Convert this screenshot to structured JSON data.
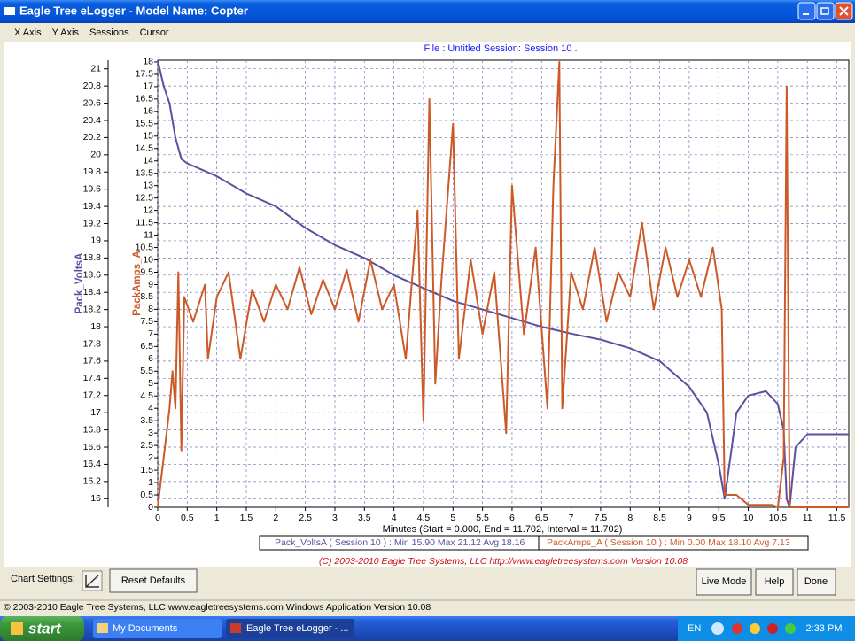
{
  "window": {
    "title": "Eagle Tree eLogger - Model Name: Copter"
  },
  "menu": [
    "X Axis",
    "Y Axis",
    "Sessions",
    "Cursor"
  ],
  "chart_data": {
    "type": "line",
    "title": "File : Untitled   Session: Session 10 .",
    "xlabel": "Minutes (Start = 0.000,  End = 11.702, Interval = 11.702)",
    "xlim": [
      0,
      11.702
    ],
    "xticks": [
      0,
      0.5,
      1,
      1.5,
      2,
      2.5,
      3,
      3.5,
      4,
      4.5,
      5,
      5.5,
      6,
      6.5,
      7,
      7.5,
      8,
      8.5,
      9,
      9.5,
      10,
      10.5,
      11,
      11.5
    ],
    "ylim": [
      15.9,
      21.1
    ],
    "yticks": [
      16,
      16.2,
      16.4,
      16.6,
      16.8,
      17,
      17.2,
      17.4,
      17.6,
      17.8,
      18,
      18.2,
      18.4,
      18.6,
      18.8,
      19,
      19.2,
      19.4,
      19.6,
      19.8,
      20,
      20.2,
      20.4,
      20.6,
      20.8,
      21
    ],
    "y2lim": [
      0,
      18.07
    ],
    "y2ticks": [
      0,
      0.5,
      1,
      1.5,
      2,
      2.5,
      3,
      3.5,
      4,
      4.5,
      5,
      5.5,
      6,
      6.5,
      7,
      7.5,
      8,
      8.5,
      9,
      9.5,
      10,
      10.5,
      11,
      11.5,
      12,
      12.5,
      13,
      13.5,
      14,
      14.5,
      15,
      15.5,
      16,
      16.5,
      17,
      17.5,
      18
    ],
    "grid": true,
    "series": [
      {
        "name": "Pack_VoltsA",
        "color": "#5b50a0",
        "x": [
          0,
          0.1,
          0.2,
          0.3,
          0.4,
          0.5,
          1,
          1.5,
          2,
          2.5,
          3,
          3.5,
          4,
          4.5,
          5,
          5.5,
          6,
          6.5,
          7,
          7.5,
          8,
          8.5,
          9,
          9.3,
          9.5,
          9.6,
          9.7,
          9.8,
          10,
          10.3,
          10.5,
          10.6,
          10.65,
          10.7,
          10.8,
          11,
          11.702
        ],
        "values": [
          21.1,
          20.8,
          20.6,
          20.2,
          19.95,
          19.9,
          19.75,
          19.55,
          19.4,
          19.15,
          18.95,
          18.8,
          18.6,
          18.45,
          18.3,
          18.2,
          18.1,
          18.0,
          17.92,
          17.85,
          17.75,
          17.6,
          17.3,
          17.0,
          16.4,
          16.0,
          16.5,
          17.0,
          17.2,
          17.25,
          17.1,
          16.8,
          16.0,
          15.9,
          16.6,
          16.75,
          16.75
        ]
      },
      {
        "name": "PackAmps_A",
        "color": "#cc5a28",
        "axis": "y2",
        "x": [
          0,
          0.1,
          0.2,
          0.25,
          0.3,
          0.35,
          0.4,
          0.45,
          0.6,
          0.8,
          0.85,
          1,
          1.2,
          1.4,
          1.6,
          1.8,
          2,
          2.2,
          2.4,
          2.6,
          2.8,
          3,
          3.2,
          3.4,
          3.6,
          3.8,
          4,
          4.2,
          4.4,
          4.5,
          4.6,
          4.7,
          4.8,
          5,
          5.1,
          5.3,
          5.5,
          5.7,
          5.9,
          6,
          6.2,
          6.4,
          6.6,
          6.7,
          6.8,
          6.85,
          7,
          7.2,
          7.4,
          7.6,
          7.8,
          8,
          8.2,
          8.4,
          8.6,
          8.8,
          9,
          9.2,
          9.4,
          9.55,
          9.6,
          9.8,
          10,
          10.4,
          10.5,
          10.6,
          10.65,
          10.7,
          11.702
        ],
        "values": [
          0,
          2,
          4,
          5.5,
          4,
          9.5,
          2.3,
          8.5,
          7.5,
          9,
          6,
          8.5,
          9.5,
          6,
          8.8,
          7.5,
          9,
          8,
          9.7,
          7.8,
          9.2,
          8,
          9.6,
          7.5,
          10,
          8,
          9,
          6,
          12,
          3.5,
          16.5,
          5,
          9,
          15.5,
          6,
          10,
          7,
          9.5,
          3,
          13,
          7,
          10.5,
          4,
          13,
          18,
          4,
          9.5,
          8,
          10.5,
          7.5,
          9.5,
          8.5,
          11.5,
          8,
          10.5,
          8.5,
          10,
          8.5,
          10.5,
          8,
          0.5,
          0.5,
          0.1,
          0.1,
          0,
          2,
          17,
          0,
          0
        ]
      }
    ]
  },
  "legend_stats": [
    "Pack_VoltsA ( Session 10 ) : Min 15.90   Max 21.12   Avg 18.16",
    "PackAmps_A ( Session 10 ) : Min 0.00   Max 18.10   Avg 7.13"
  ],
  "credit": "(C) 2003-2010 Eagle Tree Systems, LLC     http://www.eagletreesystems.com     Version 10.08",
  "controls": {
    "chart_settings": "Chart Settings:",
    "reset": "Reset Defaults",
    "live": "Live Mode",
    "help": "Help",
    "done": "Done"
  },
  "status_bar": "© 2003-2010 Eagle Tree Systems, LLC    www.eagletreesystems.com    Windows Application Version 10.08",
  "taskbar": {
    "start": "start",
    "items": [
      "My Documents",
      "Eagle Tree eLogger - ..."
    ],
    "language": "EN",
    "clock": "2:33 PM"
  }
}
